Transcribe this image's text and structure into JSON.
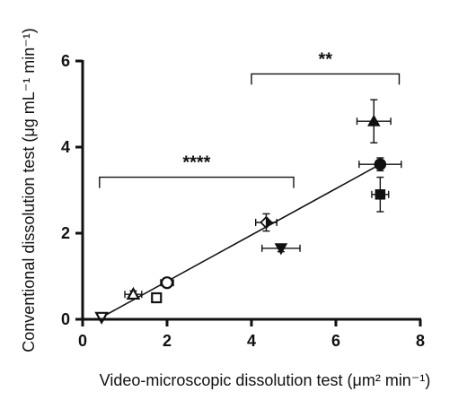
{
  "chart_data": {
    "type": "scatter",
    "title": "",
    "xlabel": "Video-microscopic dissolution test (μm² min⁻¹)",
    "ylabel": "Conventional dissolution test (μg mL⁻¹ min⁻¹)",
    "xlim": [
      0,
      8
    ],
    "ylim": [
      0,
      6
    ],
    "xticks": [
      "0",
      "2",
      "4",
      "6",
      "8"
    ],
    "yticks": [
      "0",
      "2",
      "4",
      "6"
    ],
    "grid": false,
    "points": [
      {
        "marker": "open-triangle-down",
        "x": 0.45,
        "y": 0.05,
        "xerr": 0.05,
        "yerr": 0.03
      },
      {
        "marker": "open-triangle-up",
        "x": 1.2,
        "y": 0.58,
        "xerr": 0.2,
        "yerr": 0.08
      },
      {
        "marker": "open-square",
        "x": 1.75,
        "y": 0.5,
        "xerr": 0.1,
        "yerr": 0.05
      },
      {
        "marker": "open-circle",
        "x": 2.0,
        "y": 0.85,
        "xerr": 0.15,
        "yerr": 0.1
      },
      {
        "marker": "half-diamond",
        "x": 4.35,
        "y": 2.25,
        "xerr": 0.25,
        "yerr": 0.2
      },
      {
        "marker": "filled-triangle-down",
        "x": 4.7,
        "y": 1.65,
        "xerr": 0.45,
        "yerr": 0.08
      },
      {
        "marker": "filled-triangle-up",
        "x": 6.9,
        "y": 4.6,
        "xerr": 0.4,
        "yerr": 0.5
      },
      {
        "marker": "filled-circle",
        "x": 7.05,
        "y": 3.6,
        "xerr": 0.5,
        "yerr": 0.15
      },
      {
        "marker": "filled-square",
        "x": 7.05,
        "y": 2.9,
        "xerr": 0.2,
        "yerr": 0.4
      }
    ],
    "regression_line": {
      "x": [
        0.4,
        7.05
      ],
      "y": [
        0.02,
        3.6
      ]
    },
    "significance": [
      {
        "label": "****",
        "x_start": 0.4,
        "x_end": 5.0,
        "y": 3.3,
        "tick_down": 0.25
      },
      {
        "label": "**",
        "x_start": 4.0,
        "x_end": 7.5,
        "y": 5.7,
        "tick_down": 0.25
      }
    ]
  }
}
